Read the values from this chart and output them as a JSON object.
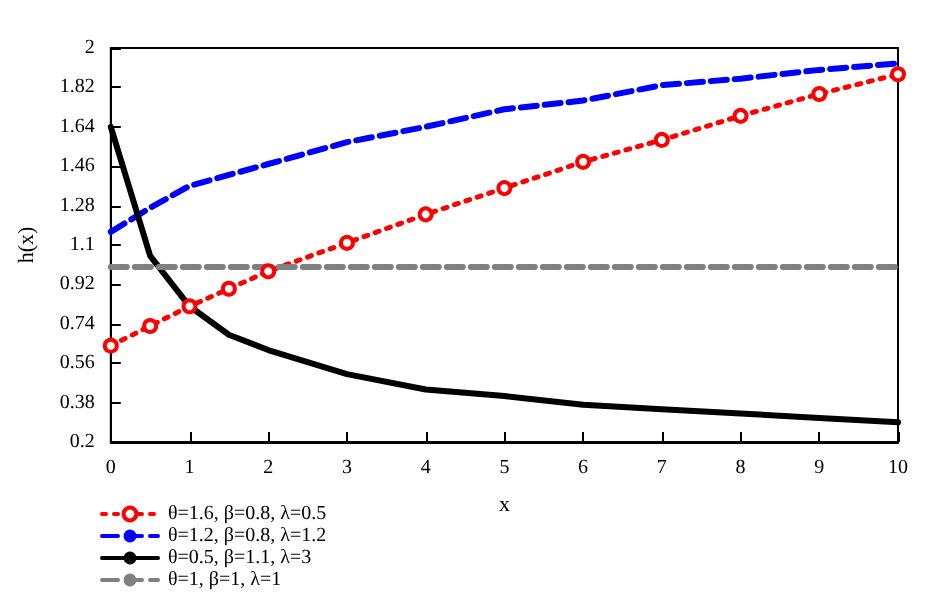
{
  "chart_data": {
    "type": "line",
    "xlabel": "x",
    "ylabel": "h(x)",
    "x": [
      0,
      0.5,
      1,
      1.5,
      2,
      3,
      4,
      5,
      6,
      7,
      8,
      9,
      10
    ],
    "series": [
      {
        "name": "θ=1.6, β=0.8, λ=0.5",
        "color": "#ff0000",
        "marker": "circle",
        "line_style": "dotted",
        "values": [
          0.64,
          0.73,
          0.82,
          0.9,
          0.98,
          1.11,
          1.24,
          1.36,
          1.48,
          1.58,
          1.69,
          1.79,
          1.88
        ]
      },
      {
        "name": "θ=1.2, β=0.8, λ=1.2",
        "color": "#0000ff",
        "marker": "none",
        "line_style": "dashed",
        "values": [
          1.16,
          1.27,
          1.37,
          1.42,
          1.47,
          1.57,
          1.64,
          1.72,
          1.76,
          1.83,
          1.86,
          1.9,
          1.93
        ]
      },
      {
        "name": "θ=0.5, β=1.1, λ=3",
        "color": "#000000",
        "marker": "none",
        "line_style": "solid",
        "values": [
          1.64,
          1.05,
          0.82,
          0.69,
          0.62,
          0.51,
          0.44,
          0.41,
          0.37,
          0.35,
          0.33,
          0.31,
          0.29
        ]
      },
      {
        "name": "θ=1, β=1, λ=1",
        "color": "#808080",
        "marker": "none",
        "line_style": "dashed",
        "values": [
          1,
          1,
          1,
          1,
          1,
          1,
          1,
          1,
          1,
          1,
          1,
          1,
          1
        ]
      }
    ],
    "xlim": [
      0,
      10
    ],
    "xticks": [
      0,
      1,
      2,
      3,
      4,
      5,
      6,
      7,
      8,
      9,
      10
    ],
    "ylim": [
      0.2,
      2
    ],
    "yticks": [
      0.2,
      0.38,
      0.56,
      0.74,
      0.92,
      1.1,
      1.28,
      1.46,
      1.64,
      1.82,
      2
    ],
    "grid": false,
    "legend": "bottom left"
  }
}
